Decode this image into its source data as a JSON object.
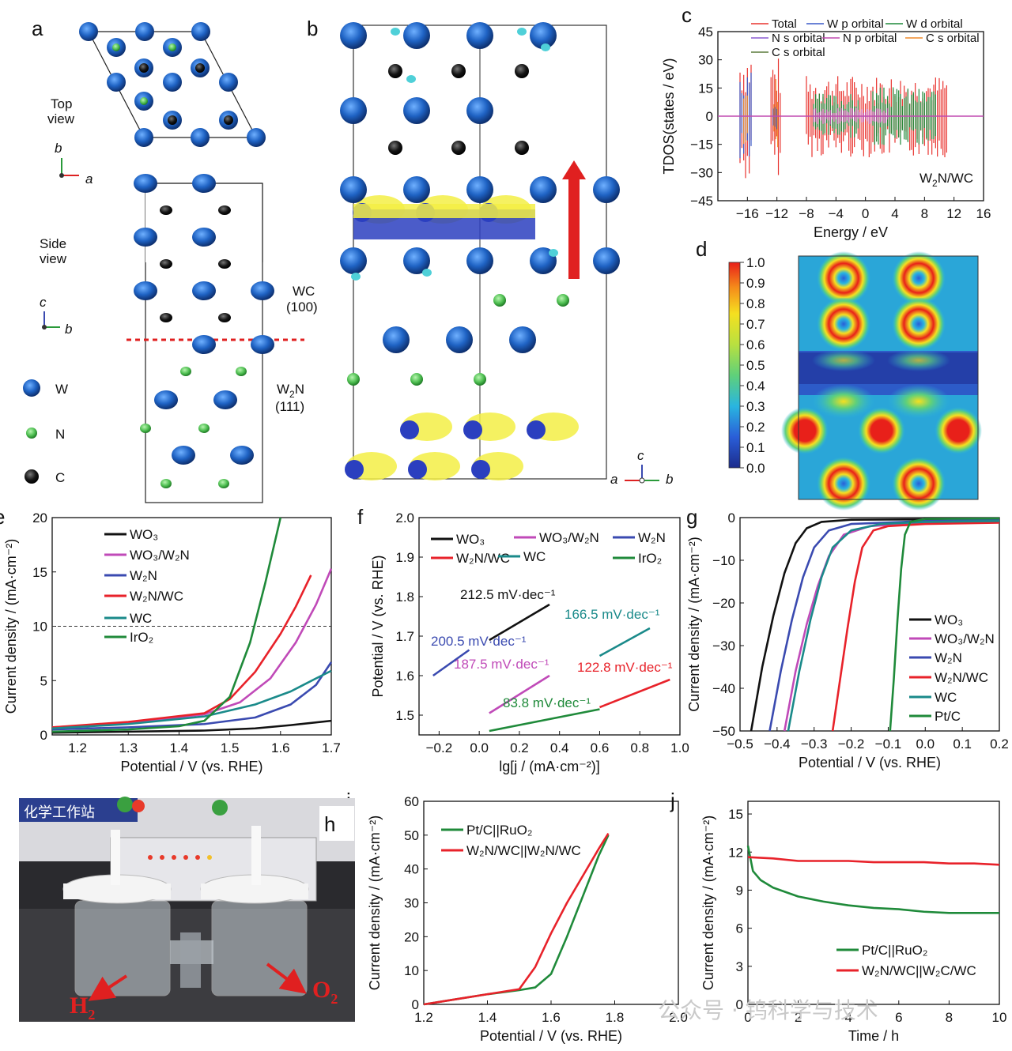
{
  "panels": {
    "a": {
      "label": "a",
      "top_view": [
        "Top",
        "view"
      ],
      "side_view": [
        "Side",
        "view"
      ],
      "axis_top": {
        "v": "b",
        "h": "a"
      },
      "axis_side": {
        "v": "c",
        "h": "b"
      },
      "wc_label": [
        "WC",
        "(100)"
      ],
      "w2n_label": [
        "W",
        "2",
        "N",
        "(111)"
      ],
      "legend": [
        {
          "name": "W",
          "color": "#1f5fb6"
        },
        {
          "name": "N",
          "color": "#55c25a"
        },
        {
          "name": "C",
          "color": "#111111"
        }
      ]
    },
    "b": {
      "label": "b",
      "axis": {
        "v": "c",
        "l": "a",
        "r": "b"
      }
    },
    "d": {
      "label": "d",
      "colorbar_ticks": [
        "1.0",
        "0.9",
        "0.8",
        "0.7",
        "0.6",
        "0.5",
        "0.4",
        "0.3",
        "0.2",
        "0.1",
        "0.0"
      ]
    },
    "h": {
      "label": "h",
      "h2": "H",
      "h2_sub": "2",
      "o2": "O",
      "o2_sub": "2",
      "screen_text": "化学工作站"
    },
    "watermark": "公众号 · 钨科学与技术"
  },
  "chart_data": [
    {
      "panel": "c",
      "type": "line",
      "xlabel": "Energy / eV",
      "ylabel": "TDOS(states / eV)",
      "xlim": [
        -20,
        16
      ],
      "ylim": [
        -45,
        45
      ],
      "xticks": [
        "-16",
        "-12",
        "-8",
        "-4",
        "0",
        "4",
        "8",
        "12",
        "16"
      ],
      "yticks": [
        "45",
        "30",
        "15",
        "0",
        "-15",
        "-30",
        "-45"
      ],
      "annotation": {
        "main": "W",
        "sub": "2",
        "rest": "N/WC"
      },
      "series": [
        {
          "name": "Total",
          "color": "#e8332e"
        },
        {
          "name": "W p orbital",
          "color": "#3a5ac8"
        },
        {
          "name": "W d orbital",
          "color": "#1f8a3a"
        },
        {
          "name": "N s orbital",
          "color": "#8a5ad0"
        },
        {
          "name": "N p orbital",
          "color": "#c04ab0"
        },
        {
          "name": "C s orbital",
          "color": "#f08a2a"
        },
        {
          "name": "C s orbital",
          "color": "#5a7a3a"
        }
      ]
    },
    {
      "panel": "e",
      "type": "line",
      "xlabel": "Potential / V (vs. RHE)",
      "ylabel": "Current density / (mA·cm⁻²)",
      "xlim": [
        1.15,
        1.7
      ],
      "ylim": [
        0,
        20
      ],
      "xticks": [
        "1.2",
        "1.3",
        "1.4",
        "1.5",
        "1.6",
        "1.7"
      ],
      "yticks": [
        "0",
        "5",
        "10",
        "15",
        "20"
      ],
      "dashed_y": 10,
      "series": [
        {
          "name": "WO₃",
          "color": "#111111",
          "x": [
            1.15,
            1.3,
            1.45,
            1.55,
            1.62,
            1.7
          ],
          "y": [
            0.2,
            0.3,
            0.4,
            0.6,
            0.9,
            1.3
          ]
        },
        {
          "name": "WO₃/W₂N",
          "color": "#c04ab8",
          "x": [
            1.15,
            1.3,
            1.45,
            1.52,
            1.58,
            1.63,
            1.67,
            1.7
          ],
          "y": [
            0.7,
            1.1,
            1.9,
            3.0,
            5.2,
            8.5,
            12.0,
            15.3
          ]
        },
        {
          "name": "W₂N",
          "color": "#3a4ab0",
          "x": [
            1.15,
            1.3,
            1.45,
            1.55,
            1.62,
            1.67,
            1.7
          ],
          "y": [
            0.5,
            0.7,
            1.0,
            1.6,
            2.8,
            4.6,
            6.7
          ]
        },
        {
          "name": "W₂N/WC",
          "color": "#e8222a",
          "x": [
            1.15,
            1.3,
            1.45,
            1.5,
            1.55,
            1.6,
            1.63,
            1.66
          ],
          "y": [
            0.7,
            1.2,
            2.0,
            3.3,
            5.8,
            9.3,
            11.8,
            14.7
          ]
        },
        {
          "name": "WC",
          "color": "#1a8a8a",
          "x": [
            1.15,
            1.3,
            1.45,
            1.55,
            1.62,
            1.67,
            1.7
          ],
          "y": [
            0.6,
            1.0,
            1.7,
            2.8,
            4.0,
            5.2,
            5.9
          ]
        },
        {
          "name": "IrO₂",
          "color": "#1f8a3a",
          "x": [
            1.15,
            1.3,
            1.4,
            1.45,
            1.5,
            1.54,
            1.57,
            1.6
          ],
          "y": [
            0.3,
            0.5,
            0.8,
            1.3,
            3.5,
            8.5,
            14.0,
            20.0
          ]
        }
      ]
    },
    {
      "panel": "f",
      "type": "line",
      "xlabel": "lg[j / (mA·cm⁻²)]",
      "ylabel": "Potential / V (vs. RHE)",
      "xlim": [
        -0.3,
        1.0
      ],
      "ylim": [
        1.45,
        2.0
      ],
      "xticks": [
        "-0.2",
        "0.0",
        "0.2",
        "0.4",
        "0.6",
        "0.8",
        "1.0"
      ],
      "yticks": [
        "1.5",
        "1.6",
        "1.7",
        "1.8",
        "1.9",
        "2.0"
      ],
      "series": [
        {
          "name": "WO₃",
          "color": "#111111",
          "x": [
            0.05,
            0.35
          ],
          "y": [
            1.69,
            1.78
          ],
          "slope_label": "212.5 mV·dec⁻¹"
        },
        {
          "name": "WO₃/W₂N",
          "color": "#c04ab8",
          "x": [
            0.05,
            0.35
          ],
          "y": [
            1.505,
            1.6
          ],
          "slope_label": "187.5 mV·dec⁻¹"
        },
        {
          "name": "W₂N",
          "color": "#3a4ab0",
          "x": [
            -0.23,
            -0.05
          ],
          "y": [
            1.6,
            1.665
          ],
          "slope_label": "200.5 mV·dec⁻¹"
        },
        {
          "name": "W₂N/WC",
          "color": "#e8222a",
          "x": [
            0.6,
            0.95
          ],
          "y": [
            1.52,
            1.59
          ],
          "slope_label": "122.8 mV·dec⁻¹"
        },
        {
          "name": "WC",
          "color": "#1a8a8a",
          "x": [
            0.6,
            0.85
          ],
          "y": [
            1.65,
            1.72
          ],
          "slope_label": "166.5 mV·dec⁻¹"
        },
        {
          "name": "IrO₂",
          "color": "#1f8a3a",
          "x": [
            0.05,
            0.6
          ],
          "y": [
            1.46,
            1.515
          ],
          "slope_label": "83.8 mV·dec⁻¹"
        }
      ]
    },
    {
      "panel": "g",
      "type": "line",
      "xlabel": "Potential / V (vs. RHE)",
      "ylabel": "Current density / (mA·cm⁻²)",
      "xlim": [
        -0.5,
        0.2
      ],
      "ylim": [
        -50,
        0
      ],
      "xticks": [
        "-0.5",
        "-0.4",
        "-0.3",
        "-0.2",
        "-0.1",
        "0.0",
        "0.1",
        "0.2"
      ],
      "yticks": [
        "0",
        "-10",
        "-20",
        "-30",
        "-40",
        "-50"
      ],
      "series": [
        {
          "name": "WO₃",
          "color": "#111111",
          "x": [
            -0.47,
            -0.44,
            -0.41,
            -0.38,
            -0.35,
            -0.32,
            -0.28,
            -0.2,
            0.2
          ],
          "y": [
            -50,
            -35,
            -23,
            -13,
            -6,
            -2.5,
            -1,
            -0.5,
            -0.3
          ]
        },
        {
          "name": "WO₃/W₂N",
          "color": "#c04ab8",
          "x": [
            -0.38,
            -0.35,
            -0.32,
            -0.29,
            -0.26,
            -0.22,
            -0.15,
            0.0,
            0.2
          ],
          "y": [
            -50,
            -36,
            -25,
            -16,
            -9,
            -4,
            -2,
            -1.2,
            -1
          ]
        },
        {
          "name": "W₂N",
          "color": "#3a4ab0",
          "x": [
            -0.42,
            -0.39,
            -0.36,
            -0.33,
            -0.3,
            -0.26,
            -0.2,
            0.0,
            0.2
          ],
          "y": [
            -50,
            -36,
            -24,
            -14,
            -7,
            -3,
            -1.5,
            -0.8,
            -0.5
          ]
        },
        {
          "name": "W₂N/WC",
          "color": "#e8222a",
          "x": [
            -0.25,
            -0.23,
            -0.21,
            -0.19,
            -0.17,
            -0.14,
            -0.1,
            0.0,
            0.2
          ],
          "y": [
            -50,
            -38,
            -26,
            -15,
            -7,
            -3,
            -2,
            -1.5,
            -1.2
          ]
        },
        {
          "name": "WC",
          "color": "#1a8a8a",
          "x": [
            -0.37,
            -0.34,
            -0.31,
            -0.28,
            -0.25,
            -0.2,
            -0.12,
            0.0,
            0.2
          ],
          "y": [
            -50,
            -36,
            -24,
            -14,
            -7,
            -3,
            -1.5,
            -1,
            -0.8
          ]
        },
        {
          "name": "Pt/C",
          "color": "#1f8a3a",
          "x": [
            -0.095,
            -0.085,
            -0.075,
            -0.065,
            -0.055,
            -0.04,
            0.0,
            0.2
          ],
          "y": [
            -50,
            -38,
            -24,
            -12,
            -4,
            -1,
            -0.3,
            -0.2
          ]
        }
      ]
    },
    {
      "panel": "i",
      "type": "line",
      "xlabel": "Potential / V (vs. RHE)",
      "ylabel": "Current density / (mA·cm⁻²)",
      "xlim": [
        1.2,
        2.0
      ],
      "ylim": [
        0,
        60
      ],
      "xticks": [
        "1.2",
        "1.4",
        "1.6",
        "1.8",
        "2.0"
      ],
      "yticks": [
        "0",
        "10",
        "20",
        "30",
        "40",
        "50",
        "60"
      ],
      "series": [
        {
          "name": "Pt/C||RuO₂",
          "color": "#1f8a3a",
          "x": [
            1.2,
            1.3,
            1.4,
            1.5,
            1.55,
            1.6,
            1.65,
            1.7,
            1.75,
            1.78
          ],
          "y": [
            0,
            1.5,
            3.0,
            4.2,
            5.0,
            9.0,
            20.0,
            32.0,
            44.0,
            50.0
          ]
        },
        {
          "name": "W₂N/WC||W₂N/WC",
          "color": "#e8222a",
          "x": [
            1.2,
            1.3,
            1.4,
            1.5,
            1.55,
            1.6,
            1.65,
            1.7,
            1.75,
            1.78
          ],
          "y": [
            0,
            1.5,
            3.0,
            4.5,
            11.0,
            21.0,
            30.0,
            38.0,
            46.0,
            50.5
          ]
        }
      ]
    },
    {
      "panel": "j",
      "type": "line",
      "xlabel": "Time / h",
      "ylabel": "Current density / (mA·cm⁻²)",
      "xlim": [
        0,
        10
      ],
      "ylim": [
        0,
        16
      ],
      "xticks": [
        "0",
        "2",
        "4",
        "6",
        "8",
        "10"
      ],
      "yticks": [
        "0",
        "3",
        "6",
        "9",
        "12",
        "15"
      ],
      "series": [
        {
          "name": "Pt/C||RuO₂",
          "color": "#1f8a3a",
          "x": [
            0,
            0.2,
            0.5,
            1,
            2,
            3,
            4,
            5,
            6,
            7,
            8,
            9,
            10
          ],
          "y": [
            12.5,
            10.5,
            9.8,
            9.2,
            8.5,
            8.1,
            7.8,
            7.6,
            7.5,
            7.3,
            7.2,
            7.2,
            7.2
          ]
        },
        {
          "name": "W₂N/WC||W₂C/WC",
          "color": "#e8222a",
          "x": [
            0,
            1,
            2,
            3,
            4,
            5,
            6,
            7,
            8,
            9,
            10
          ],
          "y": [
            11.6,
            11.5,
            11.3,
            11.3,
            11.3,
            11.2,
            11.2,
            11.2,
            11.1,
            11.1,
            11.0
          ]
        }
      ]
    }
  ]
}
